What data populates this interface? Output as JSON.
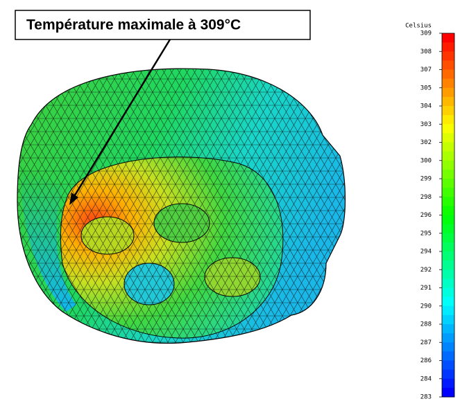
{
  "annotation": {
    "text": "Température maximale à 309°C"
  },
  "colorbar": {
    "title": "Celsius",
    "labels": [
      "309",
      "308",
      "307",
      "305",
      "304",
      "303",
      "302",
      "300",
      "299",
      "298",
      "296",
      "295",
      "294",
      "292",
      "291",
      "290",
      "288",
      "287",
      "286",
      "284",
      "283"
    ]
  }
}
